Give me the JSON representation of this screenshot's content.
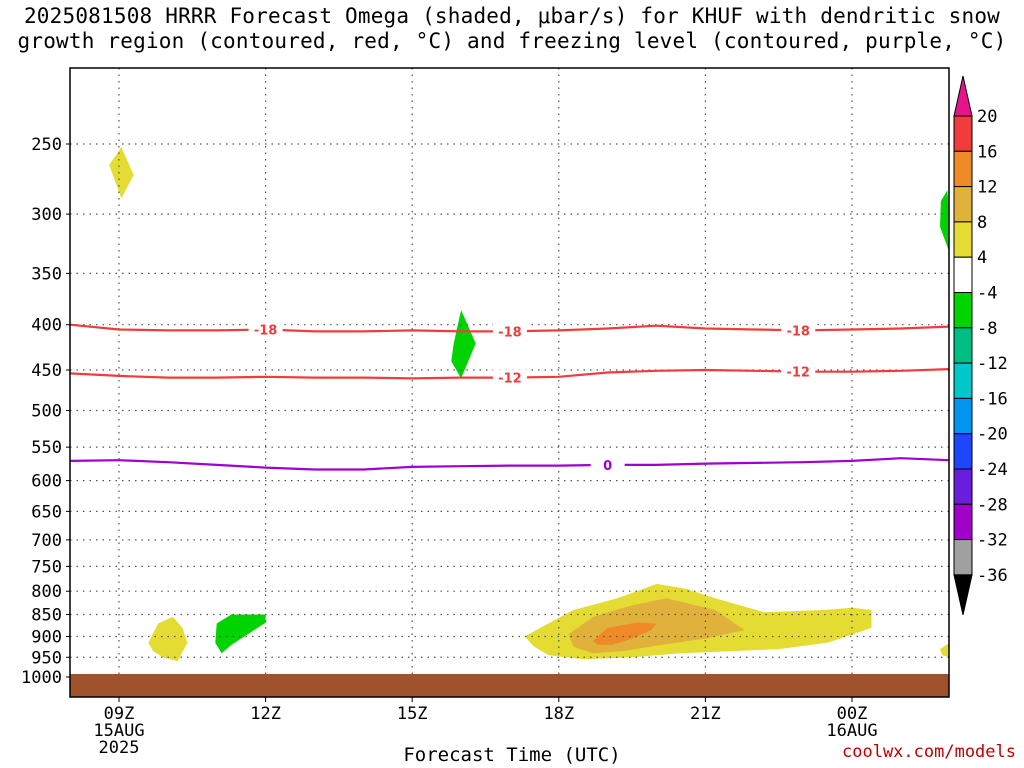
{
  "title": {
    "line1": "2025081508 HRRR Forecast Omega (shaded, μbar/s) for KHUF with dendritic snow",
    "line2": "growth region (contoured, red, °C) and freezing level (contoured, purple, °C)"
  },
  "credit": "coolwx.com/models",
  "chart_data": {
    "type": "time-height cross section",
    "xlabel": "Forecast Time (UTC)",
    "ylabel": "",
    "x_ticks": [
      {
        "hour": 9,
        "label": "09Z",
        "sub": [
          "15AUG",
          "2025"
        ]
      },
      {
        "hour": 12,
        "label": "12Z",
        "sub": []
      },
      {
        "hour": 15,
        "label": "15Z",
        "sub": []
      },
      {
        "hour": 18,
        "label": "18Z",
        "sub": []
      },
      {
        "hour": 21,
        "label": "21Z",
        "sub": []
      },
      {
        "hour": 24,
        "label": "00Z",
        "sub": [
          "16AUG"
        ]
      }
    ],
    "xlim": [
      8,
      26
    ],
    "ylim": [
      1000,
      200
    ],
    "y_scale": "log",
    "y_ticks": [
      250,
      300,
      350,
      400,
      450,
      500,
      550,
      600,
      650,
      700,
      750,
      800,
      850,
      900,
      950,
      1000
    ],
    "grid": true,
    "surface_ground": true,
    "contours": [
      {
        "field": "temperature",
        "value": -18,
        "color": "#f03c3c",
        "label": "-18",
        "points": [
          [
            8,
            400
          ],
          [
            9,
            405
          ],
          [
            10,
            406
          ],
          [
            11,
            406
          ],
          [
            12,
            405
          ],
          [
            13,
            407
          ],
          [
            14,
            407
          ],
          [
            15,
            406
          ],
          [
            16,
            407
          ],
          [
            17,
            407
          ],
          [
            18,
            406
          ],
          [
            19,
            404
          ],
          [
            20,
            401
          ],
          [
            21,
            404
          ],
          [
            22,
            405
          ],
          [
            23,
            406
          ],
          [
            24,
            405
          ],
          [
            25,
            404
          ],
          [
            26,
            402
          ]
        ],
        "label_hours": [
          12,
          17,
          22.9
        ]
      },
      {
        "field": "temperature",
        "value": -12,
        "color": "#f03c3c",
        "label": "-12",
        "points": [
          [
            8,
            454
          ],
          [
            9,
            457
          ],
          [
            10,
            459
          ],
          [
            11,
            459
          ],
          [
            12,
            458
          ],
          [
            13,
            459
          ],
          [
            14,
            459
          ],
          [
            15,
            460
          ],
          [
            16,
            459
          ],
          [
            17,
            459
          ],
          [
            18,
            458
          ],
          [
            19,
            453
          ],
          [
            20,
            451
          ],
          [
            21,
            450
          ],
          [
            22,
            451
          ],
          [
            23,
            452
          ],
          [
            24,
            452
          ],
          [
            25,
            451
          ],
          [
            26,
            449
          ]
        ],
        "label_hours": [
          17,
          22.9
        ]
      },
      {
        "field": "temperature",
        "value": 0,
        "color": "#a000d0",
        "label": "0",
        "points": [
          [
            8,
            570
          ],
          [
            9,
            569
          ],
          [
            10,
            572
          ],
          [
            11,
            576
          ],
          [
            12,
            580
          ],
          [
            13,
            583
          ],
          [
            14,
            583
          ],
          [
            15,
            579
          ],
          [
            16,
            578
          ],
          [
            17,
            577
          ],
          [
            18,
            577
          ],
          [
            19,
            576
          ],
          [
            20,
            576
          ],
          [
            21,
            574
          ],
          [
            22,
            573
          ],
          [
            23,
            572
          ],
          [
            24,
            570
          ],
          [
            25,
            566
          ],
          [
            26,
            569
          ]
        ],
        "label_hours": [
          19
        ]
      }
    ],
    "omega_features": [
      {
        "color": "#e4dc32",
        "points": [
          [
            8.8,
            264
          ],
          [
            9.05,
            252
          ],
          [
            9.3,
            271
          ],
          [
            9.05,
            288
          ]
        ]
      },
      {
        "color": "#00d400",
        "points": [
          [
            25.98,
            294
          ],
          [
            25.98,
            330
          ],
          [
            25.8,
            310
          ],
          [
            25.82,
            290
          ],
          [
            25.95,
            282
          ]
        ]
      },
      {
        "color": "#00d400",
        "points": [
          [
            15.85,
            420
          ],
          [
            16.0,
            385
          ],
          [
            16.3,
            420
          ],
          [
            16.0,
            460
          ],
          [
            15.8,
            440
          ]
        ]
      },
      {
        "color": "#e4dc32",
        "points": [
          [
            9.6,
            915
          ],
          [
            9.8,
            870
          ],
          [
            10.1,
            855
          ],
          [
            10.3,
            880
          ],
          [
            10.4,
            915
          ],
          [
            10.2,
            960
          ],
          [
            9.9,
            950
          ],
          [
            9.7,
            935
          ]
        ]
      },
      {
        "color": "#00d400",
        "points": [
          [
            11.0,
            870
          ],
          [
            11.3,
            850
          ],
          [
            12.0,
            850
          ],
          [
            12.0,
            868
          ],
          [
            11.7,
            890
          ],
          [
            11.3,
            920
          ],
          [
            11.1,
            940
          ],
          [
            10.97,
            915
          ]
        ]
      },
      {
        "color": "#e4dc32",
        "points": [
          [
            17.3,
            900
          ],
          [
            17.7,
            875
          ],
          [
            18.3,
            840
          ],
          [
            19.2,
            815
          ],
          [
            20.0,
            785
          ],
          [
            20.6,
            795
          ],
          [
            21.2,
            815
          ],
          [
            22.2,
            845
          ],
          [
            23.4,
            840
          ],
          [
            24.0,
            835
          ],
          [
            24.4,
            840
          ],
          [
            24.4,
            880
          ],
          [
            23.5,
            915
          ],
          [
            22.5,
            930
          ],
          [
            21.5,
            935
          ],
          [
            20.5,
            940
          ],
          [
            19.5,
            950
          ],
          [
            18.5,
            955
          ],
          [
            17.8,
            945
          ],
          [
            17.5,
            925
          ]
        ]
      },
      {
        "color": "#e0b23c",
        "points": [
          [
            18.2,
            895
          ],
          [
            18.7,
            855
          ],
          [
            19.5,
            830
          ],
          [
            20.2,
            815
          ],
          [
            21.2,
            840
          ],
          [
            21.8,
            885
          ],
          [
            21.0,
            905
          ],
          [
            20.1,
            920
          ],
          [
            19.3,
            935
          ],
          [
            18.7,
            940
          ],
          [
            18.3,
            925
          ]
        ]
      },
      {
        "color": "#f08a28",
        "points": [
          [
            18.7,
            910
          ],
          [
            19.0,
            880
          ],
          [
            19.6,
            868
          ],
          [
            20.0,
            870
          ],
          [
            19.9,
            885
          ],
          [
            19.5,
            905
          ],
          [
            19.1,
            920
          ],
          [
            18.8,
            920
          ]
        ]
      },
      {
        "color": "#e4dc32",
        "points": [
          [
            25.8,
            930
          ],
          [
            26.0,
            915
          ],
          [
            26.0,
            950
          ],
          [
            25.85,
            945
          ]
        ]
      }
    ],
    "colorbar": {
      "min_label": "-36",
      "max_label": "20",
      "segments": [
        {
          "label": "20",
          "color": "#f03c3c"
        },
        {
          "label": "16",
          "color": "#f08a28"
        },
        {
          "label": "12",
          "color": "#e0b23c"
        },
        {
          "label": "8",
          "color": "#e4dc32"
        },
        {
          "label": "4",
          "color": "#ffffff"
        },
        {
          "label": "-4",
          "color": "#00d400"
        },
        {
          "label": "-8",
          "color": "#00be82"
        },
        {
          "label": "-12",
          "color": "#00c8c8"
        },
        {
          "label": "-16",
          "color": "#0096f0"
        },
        {
          "label": "-20",
          "color": "#1e46ff"
        },
        {
          "label": "-24",
          "color": "#6a1edc"
        },
        {
          "label": "-28",
          "color": "#a000c8"
        },
        {
          "label": "-32",
          "color": "#a0a0a0"
        }
      ],
      "top_arrow_color": "#e6148c",
      "bottom_arrow_color": "#000000"
    },
    "ground_color": "#a0522d"
  }
}
